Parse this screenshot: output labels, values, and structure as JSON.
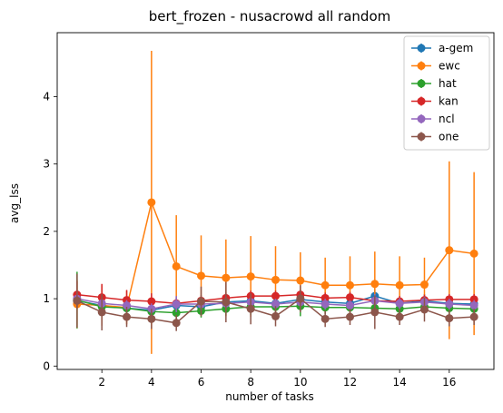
{
  "chart_data": {
    "type": "line",
    "title": "bert_frozen - nusacrowd all random",
    "xlabel": "number of tasks",
    "ylabel": "avg_lss",
    "xlim": [
      0.2,
      17.8
    ],
    "ylim": [
      -0.05,
      4.95
    ],
    "xticks": [
      2,
      4,
      6,
      8,
      10,
      12,
      14,
      16
    ],
    "yticks": [
      0,
      1,
      2,
      3,
      4
    ],
    "grid": false,
    "legend_position": "top-right",
    "x": [
      1,
      2,
      3,
      4,
      5,
      6,
      7,
      8,
      9,
      10,
      11,
      12,
      13,
      14,
      15,
      16,
      17
    ],
    "series": [
      {
        "name": "a-gem",
        "color": "#1f77b4",
        "values": [
          0.97,
          0.9,
          0.86,
          0.83,
          0.9,
          0.88,
          0.95,
          0.97,
          0.93,
          0.99,
          0.95,
          0.93,
          1.04,
          0.93,
          0.97,
          0.93,
          0.92
        ],
        "errors": [
          0.12,
          0.1,
          0.08,
          0.08,
          0.12,
          0.1,
          0.12,
          0.1,
          0.08,
          0.1,
          0.08,
          0.08,
          0.1,
          0.08,
          0.1,
          0.08,
          0.08
        ]
      },
      {
        "name": "ewc",
        "color": "#ff7f0e",
        "values": [
          0.92,
          0.9,
          0.87,
          2.43,
          1.48,
          1.34,
          1.31,
          1.33,
          1.28,
          1.27,
          1.2,
          1.2,
          1.22,
          1.2,
          1.21,
          1.72,
          1.67
        ],
        "errors": [
          0.36,
          0.3,
          0.25,
          2.25,
          0.76,
          0.6,
          0.57,
          0.6,
          0.5,
          0.42,
          0.41,
          0.43,
          0.48,
          0.43,
          0.4,
          1.32,
          1.21
        ]
      },
      {
        "name": "hat",
        "color": "#2ca02c",
        "values": [
          0.98,
          0.88,
          0.86,
          0.81,
          0.79,
          0.82,
          0.85,
          0.88,
          0.88,
          0.89,
          0.87,
          0.87,
          0.86,
          0.85,
          0.88,
          0.86,
          0.85
        ],
        "errors": [
          0.42,
          0.12,
          0.1,
          0.1,
          0.1,
          0.1,
          0.1,
          0.12,
          0.12,
          0.15,
          0.1,
          0.1,
          0.1,
          0.1,
          0.1,
          0.1,
          0.1
        ]
      },
      {
        "name": "kan",
        "color": "#d62728",
        "values": [
          1.06,
          1.02,
          0.98,
          0.96,
          0.93,
          0.97,
          1.01,
          1.04,
          1.04,
          1.06,
          1.01,
          1.02,
          0.97,
          0.96,
          0.98,
          0.99,
          0.99
        ],
        "errors": [
          0.2,
          0.2,
          0.15,
          0.12,
          0.08,
          0.08,
          0.08,
          0.08,
          0.08,
          0.08,
          0.08,
          0.08,
          0.08,
          0.08,
          0.08,
          0.08,
          0.08
        ]
      },
      {
        "name": "ncl",
        "color": "#9467bd",
        "values": [
          1.0,
          0.93,
          0.9,
          0.85,
          0.92,
          0.92,
          0.93,
          0.95,
          0.92,
          0.95,
          0.92,
          0.9,
          0.97,
          0.93,
          0.95,
          0.92,
          0.9
        ],
        "errors": [
          0.1,
          0.1,
          0.08,
          0.08,
          0.12,
          0.1,
          0.1,
          0.1,
          0.08,
          0.1,
          0.08,
          0.08,
          0.1,
          0.08,
          0.08,
          0.08,
          0.08
        ]
      },
      {
        "name": "one",
        "color": "#8c564b",
        "values": [
          0.97,
          0.8,
          0.73,
          0.7,
          0.64,
          0.96,
          0.95,
          0.85,
          0.74,
          1.0,
          0.7,
          0.73,
          0.8,
          0.73,
          0.84,
          0.71,
          0.73
        ],
        "errors": [
          0.4,
          0.27,
          0.15,
          0.15,
          0.12,
          0.22,
          0.3,
          0.23,
          0.15,
          0.2,
          0.12,
          0.12,
          0.25,
          0.12,
          0.18,
          0.12,
          0.12
        ]
      }
    ]
  }
}
